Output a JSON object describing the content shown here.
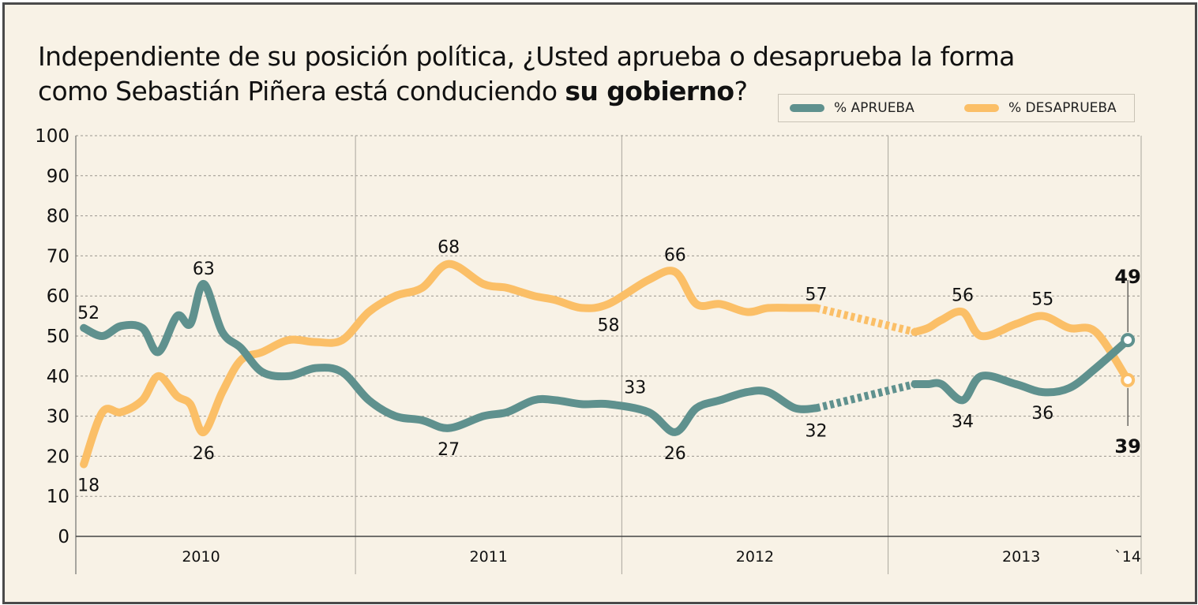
{
  "title": {
    "line1": "Independiente de su posición política,  ¿Usted aprueba o desaprueba la forma",
    "line2_pre": "como Sebastián Piñera está conduciendo ",
    "line2_bold": "su gobierno",
    "line2_post": "?"
  },
  "chart_data": {
    "type": "line",
    "title": "Independiente de su posición política, ¿Usted aprueba o desaprueba la forma como Sebastián Piñera está conduciendo su gobierno?",
    "xlabel": "",
    "ylabel": "",
    "ylim": [
      0,
      100
    ],
    "yticks": [
      0,
      10,
      20,
      30,
      40,
      50,
      60,
      70,
      80,
      90,
      100
    ],
    "xlim": [
      2009.95,
      2013.95
    ],
    "period_labels": [
      {
        "label": "2010",
        "center": 2010.42
      },
      {
        "label": "2011",
        "center": 2011.5
      },
      {
        "label": "2012",
        "center": 2012.5
      },
      {
        "label": "2013",
        "center": 2013.5
      },
      {
        "label": "`14",
        "center": 2013.9
      }
    ],
    "year_boundaries": [
      2009.95,
      2011.0,
      2012.0,
      2013.0,
      2013.95
    ],
    "gap_from": 2012.73,
    "gap_to": 2013.1,
    "series": [
      {
        "name": "% APRUEBA",
        "color": "#5f918e",
        "x": [
          2009.98,
          2010.05,
          2010.12,
          2010.2,
          2010.26,
          2010.33,
          2010.38,
          2010.43,
          2010.5,
          2010.57,
          2010.65,
          2010.75,
          2010.85,
          2010.95,
          2011.05,
          2011.15,
          2011.25,
          2011.35,
          2011.48,
          2011.57,
          2011.67,
          2011.75,
          2011.85,
          2011.95,
          2012.1,
          2012.2,
          2012.28,
          2012.37,
          2012.47,
          2012.55,
          2012.65,
          2012.73,
          2013.1,
          2013.15,
          2013.2,
          2013.28,
          2013.35,
          2013.48,
          2013.58,
          2013.68,
          2013.78,
          2013.9
        ],
        "y": [
          52,
          50,
          52.5,
          52,
          46,
          55,
          53,
          63,
          51,
          47,
          41,
          40,
          42,
          41,
          34,
          30,
          29,
          27,
          30,
          31,
          34,
          34,
          33,
          33,
          31,
          26,
          32,
          34,
          36,
          36,
          32,
          32,
          38,
          38,
          38,
          34,
          40,
          38,
          36,
          37,
          42,
          49
        ],
        "labels": [
          {
            "x": 2009.98,
            "y": 52,
            "text": "52"
          },
          {
            "x": 2010.43,
            "y": 63,
            "text": "63"
          },
          {
            "x": 2011.35,
            "y": 27,
            "text": "27"
          },
          {
            "x": 2012.05,
            "y": 33,
            "text": "33"
          },
          {
            "x": 2012.2,
            "y": 26,
            "text": "26"
          },
          {
            "x": 2012.73,
            "y": 32,
            "text": "32"
          },
          {
            "x": 2013.28,
            "y": 34,
            "text": "34"
          },
          {
            "x": 2013.58,
            "y": 36,
            "text": "36"
          },
          {
            "x": 2013.9,
            "y": 49,
            "text": "49",
            "bold": true
          }
        ]
      },
      {
        "name": "% DESAPRUEBA",
        "color": "#fbbf67",
        "x": [
          2009.98,
          2010.05,
          2010.12,
          2010.2,
          2010.26,
          2010.33,
          2010.38,
          2010.43,
          2010.5,
          2010.57,
          2010.65,
          2010.75,
          2010.85,
          2010.95,
          2011.05,
          2011.15,
          2011.25,
          2011.35,
          2011.48,
          2011.57,
          2011.67,
          2011.75,
          2011.85,
          2011.95,
          2012.1,
          2012.2,
          2012.28,
          2012.37,
          2012.47,
          2012.55,
          2012.65,
          2012.73,
          2013.1,
          2013.15,
          2013.2,
          2013.28,
          2013.35,
          2013.48,
          2013.58,
          2013.68,
          2013.78,
          2013.9
        ],
        "y": [
          18,
          31,
          31,
          34,
          40,
          35,
          33,
          26,
          36,
          44,
          46,
          49,
          48.5,
          49,
          56,
          60,
          62,
          68,
          63,
          62,
          60,
          59,
          57,
          58,
          64,
          66,
          58,
          58,
          56,
          57,
          57,
          57,
          51,
          52,
          54,
          56,
          50,
          53,
          55,
          52,
          51,
          39
        ],
        "labels": [
          {
            "x": 2009.98,
            "y": 18,
            "text": "18"
          },
          {
            "x": 2010.43,
            "y": 26,
            "text": "26"
          },
          {
            "x": 2011.35,
            "y": 68,
            "text": "68"
          },
          {
            "x": 2011.95,
            "y": 58,
            "text": "58"
          },
          {
            "x": 2012.2,
            "y": 66,
            "text": "66"
          },
          {
            "x": 2012.73,
            "y": 57,
            "text": "57"
          },
          {
            "x": 2013.28,
            "y": 56,
            "text": "56"
          },
          {
            "x": 2013.58,
            "y": 55,
            "text": "55"
          },
          {
            "x": 2013.9,
            "y": 39,
            "text": "39",
            "bold": true
          }
        ]
      }
    ]
  }
}
